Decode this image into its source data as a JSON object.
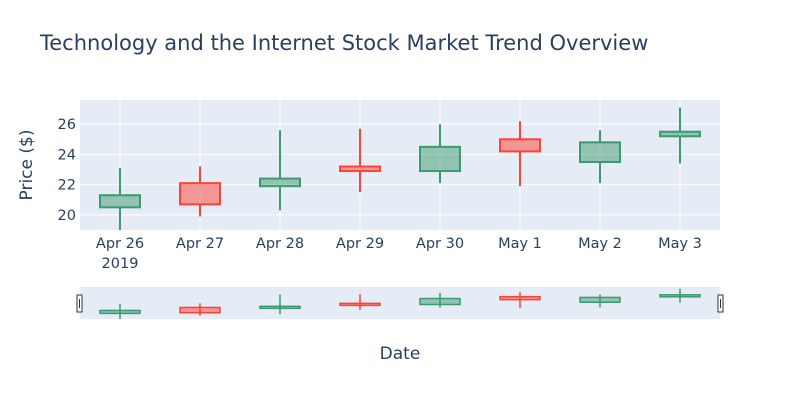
{
  "chart_data": {
    "type": "candlestick",
    "title": "Technology and the Internet Stock Market Trend Overview",
    "xlabel": "Date",
    "ylabel": "Price ($)",
    "year_label": "2019",
    "x_ticks": [
      "Apr 26",
      "Apr 27",
      "Apr 28",
      "Apr 29",
      "Apr 30",
      "May 1",
      "May 2",
      "May 3"
    ],
    "y_ticks": [
      20,
      22,
      24,
      26
    ],
    "ylim": [
      19,
      27.6
    ],
    "rangeslider": true,
    "grid": true,
    "colors": {
      "increasing": "#3D9970",
      "decreasing": "#FF4136",
      "plot_bg": "#E5ECF6",
      "grid": "#ffffff",
      "text": "#2a3f5f"
    },
    "candles": [
      {
        "date": "2019-04-26",
        "open": 20.5,
        "high": 23.1,
        "low": 19.0,
        "close": 21.3
      },
      {
        "date": "2019-04-27",
        "open": 22.1,
        "high": 23.2,
        "low": 19.9,
        "close": 20.7
      },
      {
        "date": "2019-04-28",
        "open": 21.9,
        "high": 25.6,
        "low": 20.3,
        "close": 22.4
      },
      {
        "date": "2019-04-29",
        "open": 23.2,
        "high": 25.7,
        "low": 21.5,
        "close": 22.9
      },
      {
        "date": "2019-04-30",
        "open": 22.9,
        "high": 26.0,
        "low": 22.1,
        "close": 24.5
      },
      {
        "date": "2019-05-01",
        "open": 25.0,
        "high": 26.2,
        "low": 21.9,
        "close": 24.2
      },
      {
        "date": "2019-05-02",
        "open": 23.5,
        "high": 25.6,
        "low": 22.1,
        "close": 24.8
      },
      {
        "date": "2019-05-03",
        "open": 25.2,
        "high": 27.1,
        "low": 23.4,
        "close": 25.5
      }
    ]
  }
}
